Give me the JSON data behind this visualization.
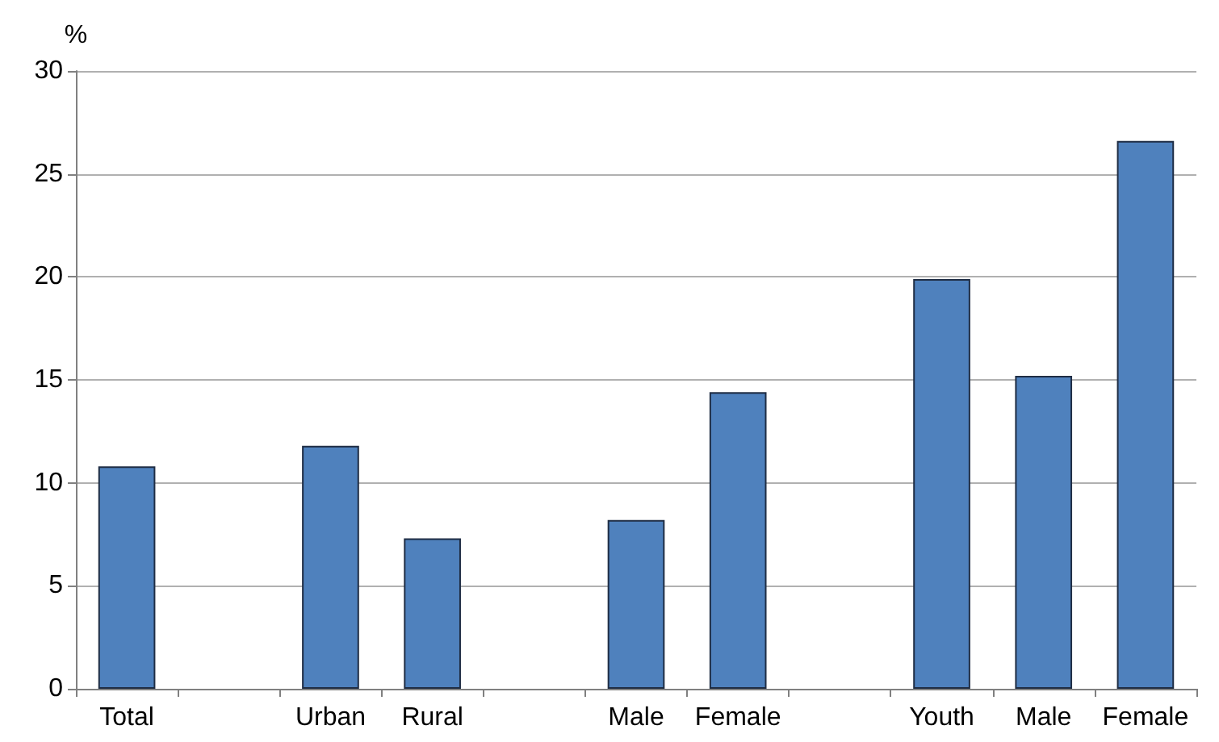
{
  "chart_data": {
    "type": "bar",
    "ylabel": "%",
    "categories": [
      "Total",
      null,
      "Urban",
      "Rural",
      null,
      "Male",
      "Female",
      null,
      "Youth",
      "Male",
      "Female"
    ],
    "values": [
      10.8,
      null,
      11.8,
      7.3,
      null,
      8.2,
      14.4,
      null,
      19.9,
      15.2,
      26.6
    ],
    "color": "#4f81bd",
    "ylim": [
      0,
      30
    ],
    "yticks": [
      0,
      5,
      10,
      15,
      20,
      25,
      30
    ],
    "grid": "y"
  }
}
